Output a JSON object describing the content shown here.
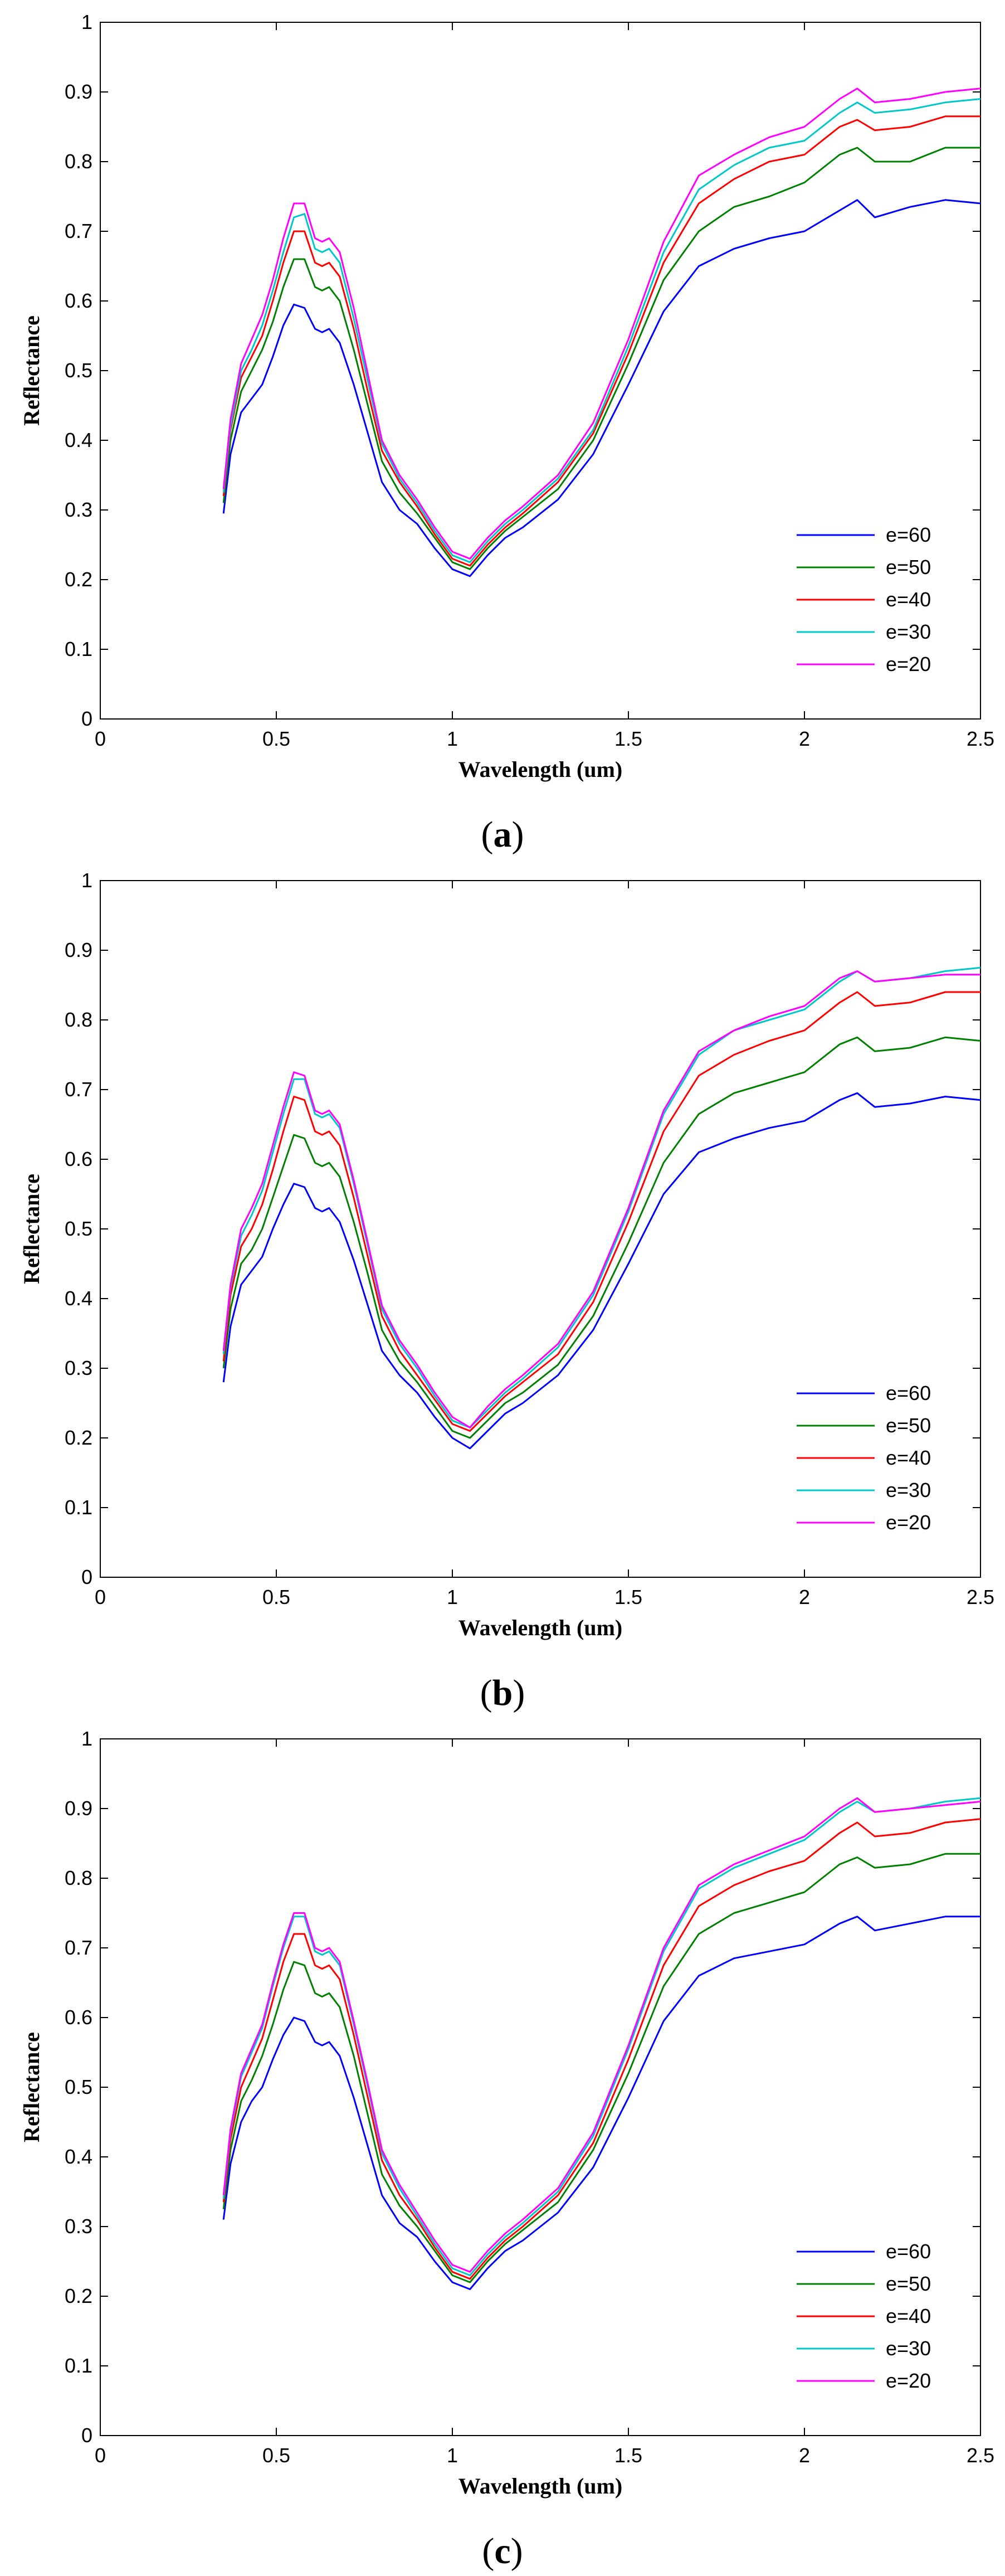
{
  "chart_data": [
    {
      "type": "line",
      "caption_letter": "a",
      "xlabel": "Wavelength (um)",
      "ylabel": "Reflectance",
      "xlim": [
        0,
        2.5
      ],
      "ylim": [
        0,
        1
      ],
      "x_ticks": [
        "0",
        "0.5",
        "1",
        "1.5",
        "2",
        "2.5"
      ],
      "y_ticks": [
        "0",
        "0.1",
        "0.2",
        "0.3",
        "0.4",
        "0.5",
        "0.6",
        "0.7",
        "0.8",
        "0.9",
        "1"
      ],
      "legend_position": "bottom-right",
      "x": [
        0.35,
        0.37,
        0.4,
        0.43,
        0.46,
        0.49,
        0.52,
        0.55,
        0.58,
        0.61,
        0.63,
        0.65,
        0.68,
        0.72,
        0.76,
        0.8,
        0.85,
        0.9,
        0.95,
        1.0,
        1.05,
        1.1,
        1.15,
        1.2,
        1.3,
        1.4,
        1.5,
        1.6,
        1.7,
        1.8,
        1.9,
        2.0,
        2.1,
        2.15,
        2.2,
        2.3,
        2.4,
        2.5
      ],
      "series": [
        {
          "name": "e=60",
          "color": "#0000ff",
          "values": [
            0.295,
            0.38,
            0.44,
            0.46,
            0.48,
            0.52,
            0.565,
            0.595,
            0.59,
            0.56,
            0.555,
            0.56,
            0.54,
            0.48,
            0.41,
            0.34,
            0.3,
            0.28,
            0.245,
            0.215,
            0.205,
            0.235,
            0.26,
            0.275,
            0.315,
            0.38,
            0.48,
            0.585,
            0.65,
            0.675,
            0.69,
            0.7,
            0.73,
            0.745,
            0.72,
            0.735,
            0.745,
            0.74
          ]
        },
        {
          "name": "e=50",
          "color": "#008000",
          "values": [
            0.31,
            0.4,
            0.47,
            0.5,
            0.53,
            0.57,
            0.62,
            0.66,
            0.66,
            0.62,
            0.615,
            0.62,
            0.6,
            0.53,
            0.45,
            0.37,
            0.325,
            0.295,
            0.26,
            0.225,
            0.215,
            0.245,
            0.27,
            0.29,
            0.33,
            0.4,
            0.51,
            0.63,
            0.7,
            0.735,
            0.75,
            0.77,
            0.81,
            0.82,
            0.8,
            0.8,
            0.82,
            0.82
          ]
        },
        {
          "name": "e=40",
          "color": "#ff0000",
          "values": [
            0.32,
            0.415,
            0.49,
            0.52,
            0.55,
            0.6,
            0.655,
            0.7,
            0.7,
            0.655,
            0.65,
            0.655,
            0.635,
            0.56,
            0.47,
            0.385,
            0.34,
            0.305,
            0.265,
            0.23,
            0.22,
            0.25,
            0.275,
            0.295,
            0.34,
            0.41,
            0.525,
            0.655,
            0.74,
            0.775,
            0.8,
            0.81,
            0.85,
            0.86,
            0.845,
            0.85,
            0.865,
            0.865
          ]
        },
        {
          "name": "e=30",
          "color": "#00c8c8",
          "values": [
            0.325,
            0.42,
            0.5,
            0.53,
            0.565,
            0.615,
            0.67,
            0.72,
            0.725,
            0.675,
            0.67,
            0.675,
            0.655,
            0.575,
            0.485,
            0.395,
            0.345,
            0.31,
            0.27,
            0.235,
            0.225,
            0.255,
            0.28,
            0.3,
            0.345,
            0.415,
            0.535,
            0.67,
            0.76,
            0.795,
            0.82,
            0.83,
            0.87,
            0.885,
            0.87,
            0.875,
            0.885,
            0.89
          ]
        },
        {
          "name": "e=20",
          "color": "#ff00ff",
          "values": [
            0.33,
            0.43,
            0.51,
            0.545,
            0.58,
            0.63,
            0.69,
            0.74,
            0.74,
            0.69,
            0.685,
            0.69,
            0.67,
            0.59,
            0.495,
            0.4,
            0.35,
            0.315,
            0.275,
            0.24,
            0.23,
            0.26,
            0.285,
            0.305,
            0.35,
            0.425,
            0.545,
            0.685,
            0.78,
            0.81,
            0.835,
            0.85,
            0.89,
            0.905,
            0.885,
            0.89,
            0.9,
            0.905
          ]
        }
      ]
    },
    {
      "type": "line",
      "caption_letter": "b",
      "xlabel": "Wavelength (um)",
      "ylabel": "Reflectance",
      "xlim": [
        0,
        2.5
      ],
      "ylim": [
        0,
        1
      ],
      "x_ticks": [
        "0",
        "0.5",
        "1",
        "1.5",
        "2",
        "2.5"
      ],
      "y_ticks": [
        "0",
        "0.1",
        "0.2",
        "0.3",
        "0.4",
        "0.5",
        "0.6",
        "0.7",
        "0.8",
        "0.9",
        "1"
      ],
      "legend_position": "bottom-right",
      "x": [
        0.35,
        0.37,
        0.4,
        0.43,
        0.46,
        0.49,
        0.52,
        0.55,
        0.58,
        0.61,
        0.63,
        0.65,
        0.68,
        0.72,
        0.76,
        0.8,
        0.85,
        0.9,
        0.95,
        1.0,
        1.05,
        1.1,
        1.15,
        1.2,
        1.3,
        1.4,
        1.5,
        1.6,
        1.7,
        1.8,
        1.9,
        2.0,
        2.1,
        2.15,
        2.2,
        2.3,
        2.4,
        2.5
      ],
      "series": [
        {
          "name": "e=60",
          "color": "#0000ff",
          "values": [
            0.28,
            0.36,
            0.42,
            0.44,
            0.46,
            0.5,
            0.535,
            0.565,
            0.56,
            0.53,
            0.525,
            0.53,
            0.51,
            0.455,
            0.39,
            0.325,
            0.29,
            0.265,
            0.23,
            0.2,
            0.185,
            0.21,
            0.235,
            0.25,
            0.29,
            0.355,
            0.45,
            0.55,
            0.61,
            0.63,
            0.645,
            0.655,
            0.685,
            0.695,
            0.675,
            0.68,
            0.69,
            0.685
          ]
        },
        {
          "name": "e=50",
          "color": "#008000",
          "values": [
            0.3,
            0.385,
            0.45,
            0.47,
            0.5,
            0.545,
            0.59,
            0.635,
            0.63,
            0.595,
            0.59,
            0.595,
            0.575,
            0.51,
            0.435,
            0.355,
            0.31,
            0.28,
            0.245,
            0.21,
            0.2,
            0.225,
            0.25,
            0.265,
            0.305,
            0.375,
            0.48,
            0.595,
            0.665,
            0.695,
            0.71,
            0.725,
            0.765,
            0.775,
            0.755,
            0.76,
            0.775,
            0.77
          ]
        },
        {
          "name": "e=40",
          "color": "#ff0000",
          "values": [
            0.31,
            0.405,
            0.475,
            0.5,
            0.535,
            0.585,
            0.64,
            0.69,
            0.685,
            0.64,
            0.635,
            0.64,
            0.62,
            0.545,
            0.46,
            0.375,
            0.325,
            0.29,
            0.255,
            0.22,
            0.21,
            0.235,
            0.26,
            0.28,
            0.32,
            0.395,
            0.51,
            0.64,
            0.72,
            0.75,
            0.77,
            0.785,
            0.825,
            0.84,
            0.82,
            0.825,
            0.84,
            0.84
          ]
        },
        {
          "name": "e=30",
          "color": "#00c8c8",
          "values": [
            0.32,
            0.415,
            0.49,
            0.52,
            0.555,
            0.61,
            0.665,
            0.715,
            0.715,
            0.665,
            0.66,
            0.665,
            0.645,
            0.565,
            0.475,
            0.385,
            0.335,
            0.3,
            0.26,
            0.225,
            0.215,
            0.24,
            0.265,
            0.285,
            0.33,
            0.405,
            0.525,
            0.665,
            0.75,
            0.785,
            0.8,
            0.815,
            0.855,
            0.87,
            0.855,
            0.86,
            0.87,
            0.875
          ]
        },
        {
          "name": "e=20",
          "color": "#ff00ff",
          "values": [
            0.325,
            0.42,
            0.5,
            0.53,
            0.565,
            0.62,
            0.675,
            0.725,
            0.72,
            0.67,
            0.665,
            0.67,
            0.65,
            0.57,
            0.48,
            0.39,
            0.34,
            0.305,
            0.265,
            0.23,
            0.215,
            0.245,
            0.27,
            0.29,
            0.335,
            0.41,
            0.53,
            0.67,
            0.755,
            0.785,
            0.805,
            0.82,
            0.86,
            0.87,
            0.855,
            0.86,
            0.865,
            0.865
          ]
        }
      ]
    },
    {
      "type": "line",
      "caption_letter": "c",
      "xlabel": "Wavelength (um)",
      "ylabel": "Reflectance",
      "xlim": [
        0,
        2.5
      ],
      "ylim": [
        0,
        1
      ],
      "x_ticks": [
        "0",
        "0.5",
        "1",
        "1.5",
        "2",
        "2.5"
      ],
      "y_ticks": [
        "0",
        "0.1",
        "0.2",
        "0.3",
        "0.4",
        "0.5",
        "0.6",
        "0.7",
        "0.8",
        "0.9",
        "1"
      ],
      "legend_position": "bottom-right",
      "x": [
        0.35,
        0.37,
        0.4,
        0.43,
        0.46,
        0.49,
        0.52,
        0.55,
        0.58,
        0.61,
        0.63,
        0.65,
        0.68,
        0.72,
        0.76,
        0.8,
        0.85,
        0.9,
        0.95,
        1.0,
        1.05,
        1.1,
        1.15,
        1.2,
        1.3,
        1.4,
        1.5,
        1.6,
        1.7,
        1.8,
        1.9,
        2.0,
        2.1,
        2.15,
        2.2,
        2.3,
        2.4,
        2.5
      ],
      "series": [
        {
          "name": "e=60",
          "color": "#0000ff",
          "values": [
            0.31,
            0.39,
            0.45,
            0.48,
            0.5,
            0.54,
            0.575,
            0.6,
            0.595,
            0.565,
            0.56,
            0.565,
            0.545,
            0.485,
            0.415,
            0.345,
            0.305,
            0.285,
            0.25,
            0.22,
            0.21,
            0.24,
            0.265,
            0.28,
            0.32,
            0.385,
            0.485,
            0.595,
            0.66,
            0.685,
            0.695,
            0.705,
            0.735,
            0.745,
            0.725,
            0.735,
            0.745,
            0.745
          ]
        },
        {
          "name": "e=50",
          "color": "#008000",
          "values": [
            0.325,
            0.41,
            0.48,
            0.51,
            0.545,
            0.59,
            0.64,
            0.68,
            0.675,
            0.635,
            0.63,
            0.635,
            0.615,
            0.545,
            0.46,
            0.375,
            0.33,
            0.3,
            0.265,
            0.23,
            0.22,
            0.25,
            0.275,
            0.295,
            0.335,
            0.41,
            0.52,
            0.645,
            0.72,
            0.75,
            0.765,
            0.78,
            0.82,
            0.83,
            0.815,
            0.82,
            0.835,
            0.835
          ]
        },
        {
          "name": "e=40",
          "color": "#ff0000",
          "values": [
            0.335,
            0.425,
            0.5,
            0.535,
            0.57,
            0.625,
            0.68,
            0.72,
            0.72,
            0.675,
            0.67,
            0.675,
            0.655,
            0.575,
            0.485,
            0.395,
            0.345,
            0.31,
            0.27,
            0.235,
            0.225,
            0.255,
            0.28,
            0.3,
            0.345,
            0.42,
            0.54,
            0.675,
            0.76,
            0.79,
            0.81,
            0.825,
            0.865,
            0.88,
            0.86,
            0.865,
            0.88,
            0.885
          ]
        },
        {
          "name": "e=30",
          "color": "#00c8c8",
          "values": [
            0.34,
            0.435,
            0.515,
            0.55,
            0.585,
            0.645,
            0.7,
            0.745,
            0.745,
            0.695,
            0.69,
            0.695,
            0.675,
            0.59,
            0.5,
            0.405,
            0.355,
            0.315,
            0.275,
            0.24,
            0.23,
            0.26,
            0.285,
            0.305,
            0.35,
            0.43,
            0.555,
            0.695,
            0.785,
            0.815,
            0.835,
            0.855,
            0.895,
            0.91,
            0.895,
            0.9,
            0.91,
            0.915
          ]
        },
        {
          "name": "e=20",
          "color": "#ff00ff",
          "values": [
            0.345,
            0.44,
            0.52,
            0.555,
            0.59,
            0.65,
            0.705,
            0.75,
            0.75,
            0.7,
            0.695,
            0.7,
            0.68,
            0.595,
            0.505,
            0.41,
            0.36,
            0.32,
            0.28,
            0.245,
            0.235,
            0.265,
            0.29,
            0.31,
            0.355,
            0.435,
            0.56,
            0.7,
            0.79,
            0.82,
            0.84,
            0.86,
            0.9,
            0.915,
            0.895,
            0.9,
            0.905,
            0.91
          ]
        }
      ]
    }
  ]
}
